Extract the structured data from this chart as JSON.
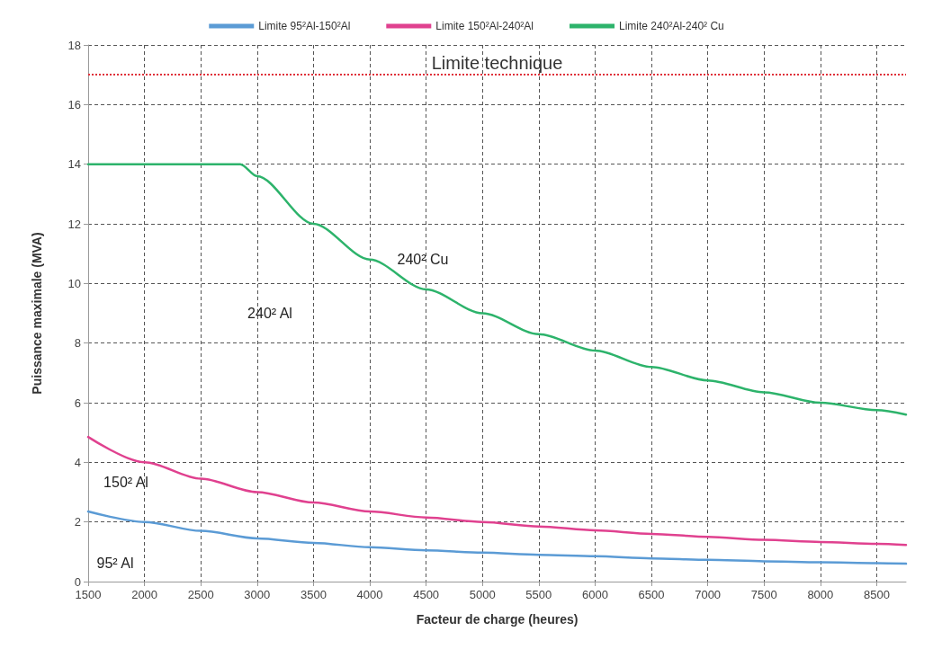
{
  "chart_data": {
    "type": "line",
    "xlabel": "Facteur de charge (heures)",
    "ylabel": "Puissance maximale (MVA)",
    "xlim": [
      1500,
      8760
    ],
    "xticks": [
      1500,
      2000,
      2500,
      3000,
      3500,
      4000,
      4500,
      5000,
      5500,
      6000,
      6500,
      7000,
      7500,
      8000,
      8500
    ],
    "ylim": [
      0,
      18
    ],
    "yticks": [
      0,
      2,
      4,
      6,
      8,
      10,
      12,
      14,
      16,
      18
    ],
    "grid": true,
    "legend": "top",
    "marker": "none",
    "line_style": "solid",
    "series": [
      {
        "name": "Limite 95²Al-150²Al",
        "color": "#5b9bd5",
        "x": [
          1500,
          2000,
          2500,
          3000,
          3500,
          4000,
          4500,
          5000,
          5500,
          6000,
          6500,
          7000,
          7500,
          8000,
          8500,
          8760
        ],
        "values": [
          2.35,
          2.0,
          1.7,
          1.45,
          1.3,
          1.15,
          1.05,
          0.97,
          0.9,
          0.85,
          0.78,
          0.73,
          0.68,
          0.65,
          0.62,
          0.6
        ]
      },
      {
        "name": "Limite 150²Al-240²Al",
        "color": "#e0418f",
        "x": [
          1500,
          2000,
          2500,
          3000,
          3500,
          4000,
          4500,
          5000,
          5500,
          6000,
          6500,
          7000,
          7500,
          8000,
          8500,
          8760
        ],
        "values": [
          4.85,
          4.0,
          3.45,
          3.0,
          2.65,
          2.35,
          2.15,
          2.0,
          1.85,
          1.72,
          1.6,
          1.5,
          1.4,
          1.33,
          1.27,
          1.23
        ]
      },
      {
        "name": "Limite 240²Al-240² Cu",
        "color": "#2db36b",
        "x": [
          1500,
          2850,
          3000,
          3500,
          4000,
          4500,
          5000,
          5500,
          6000,
          6500,
          7000,
          7500,
          8000,
          8500,
          8760
        ],
        "values": [
          14,
          14,
          13.6,
          12,
          10.8,
          9.8,
          9.0,
          8.3,
          7.75,
          7.2,
          6.75,
          6.35,
          6.0,
          5.75,
          5.6
        ]
      }
    ],
    "ref_lines": [
      {
        "axis": "y",
        "value": 17,
        "label": "Limite technique",
        "color": "#e0303a",
        "line_style": "dotted"
      }
    ],
    "annotations": [
      "240² Cu",
      "240² Al",
      "150² Al",
      "95² Al"
    ]
  }
}
